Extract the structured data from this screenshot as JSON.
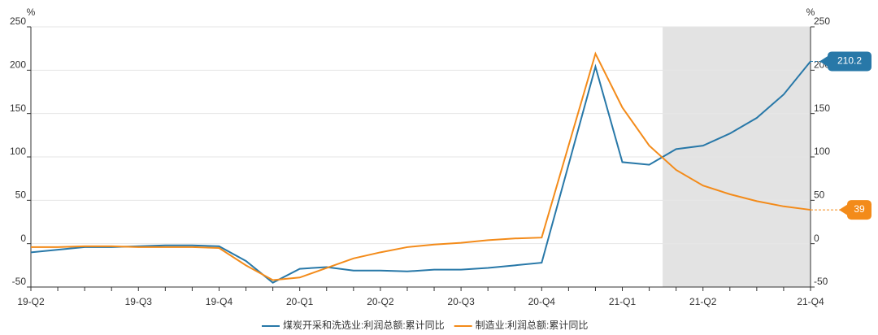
{
  "chart_data": {
    "type": "line",
    "y_unit": "%",
    "y2_unit": "%",
    "categories": [
      "19-Q2",
      null,
      null,
      null,
      "19-Q3",
      null,
      null,
      "19-Q4",
      null,
      null,
      "20-Q1",
      null,
      null,
      "20-Q2",
      null,
      null,
      "20-Q3",
      null,
      null,
      "20-Q4",
      null,
      null,
      "21-Q1",
      null,
      null,
      "21-Q2",
      null,
      null,
      null,
      "21-Q4"
    ],
    "series": [
      {
        "name": "煤炭开采和洗选业:利润总额:累计同比",
        "color": "#2878a8",
        "values": [
          -10,
          -7,
          -4,
          -4,
          -3,
          -2,
          -2,
          -3,
          -20,
          -45,
          -29,
          -27,
          -31,
          -31,
          -32,
          -30,
          -30,
          -28,
          -25,
          -22,
          91,
          204,
          94,
          91,
          109,
          113,
          127,
          145,
          172,
          210.2
        ]
      },
      {
        "name": "制造业:利润总额:累计同比",
        "color": "#f38b1a",
        "axis": "y2",
        "values": [
          -4,
          -4,
          -3,
          -3,
          -4,
          -4,
          -4,
          -5,
          -25,
          -42,
          -39,
          -28,
          -17,
          -10,
          -4,
          -1,
          1,
          4,
          6,
          7,
          113,
          219,
          157,
          113,
          85,
          67,
          57,
          49,
          43,
          39
        ]
      }
    ],
    "ylim": [
      -50,
      250
    ],
    "yticks": [
      -50,
      0,
      50,
      100,
      150,
      200,
      250
    ],
    "y2lim": [
      -50,
      250
    ],
    "y2ticks": [
      -50,
      0,
      50,
      100,
      150,
      200,
      250
    ],
    "shaded_range": [
      23.5,
      29
    ],
    "grid": true,
    "legend": "bottom"
  }
}
